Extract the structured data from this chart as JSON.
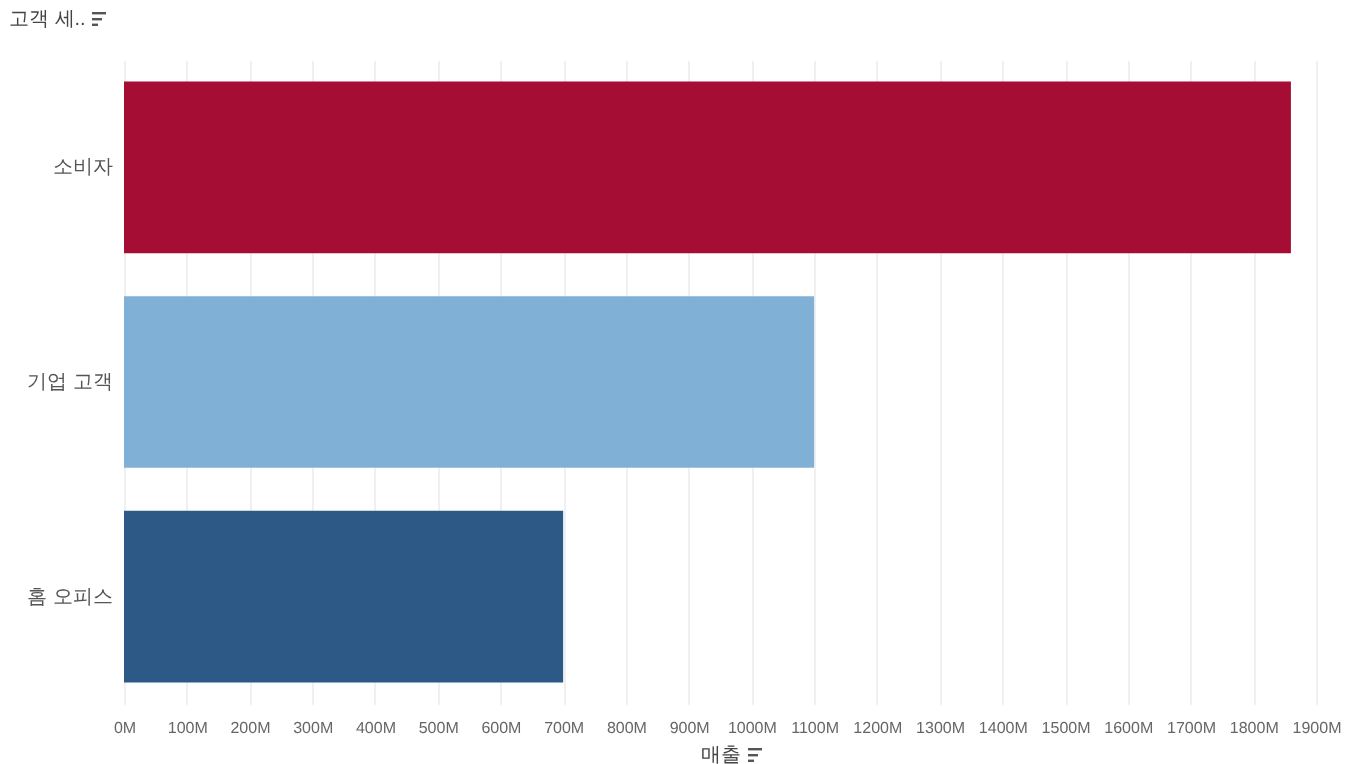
{
  "chart_data": {
    "type": "bar",
    "orientation": "horizontal",
    "ylabel": "고객 세..",
    "xlabel": "매출",
    "categories": [
      "소비자",
      "기업 고객",
      "홈 오피스"
    ],
    "values": [
      1860,
      1100,
      700
    ],
    "colors": [
      "#a50d35",
      "#80b0d6",
      "#2c5985"
    ],
    "xlim": [
      0,
      1900
    ],
    "xticks": [
      {
        "value": 0,
        "label": "0M"
      },
      {
        "value": 100,
        "label": "100M"
      },
      {
        "value": 200,
        "label": "200M"
      },
      {
        "value": 300,
        "label": "300M"
      },
      {
        "value": 400,
        "label": "400M"
      },
      {
        "value": 500,
        "label": "500M"
      },
      {
        "value": 600,
        "label": "600M"
      },
      {
        "value": 700,
        "label": "700M"
      },
      {
        "value": 800,
        "label": "800M"
      },
      {
        "value": 900,
        "label": "900M"
      },
      {
        "value": 1000,
        "label": "1000M"
      },
      {
        "value": 1100,
        "label": "1100M"
      },
      {
        "value": 1200,
        "label": "1200M"
      },
      {
        "value": 1300,
        "label": "1300M"
      },
      {
        "value": 1400,
        "label": "1400M"
      },
      {
        "value": 1500,
        "label": "1500M"
      },
      {
        "value": 1600,
        "label": "1600M"
      },
      {
        "value": 1700,
        "label": "1700M"
      },
      {
        "value": 1800,
        "label": "1800M"
      },
      {
        "value": 1900,
        "label": "1900M"
      }
    ],
    "grid": "x",
    "legend": false
  }
}
